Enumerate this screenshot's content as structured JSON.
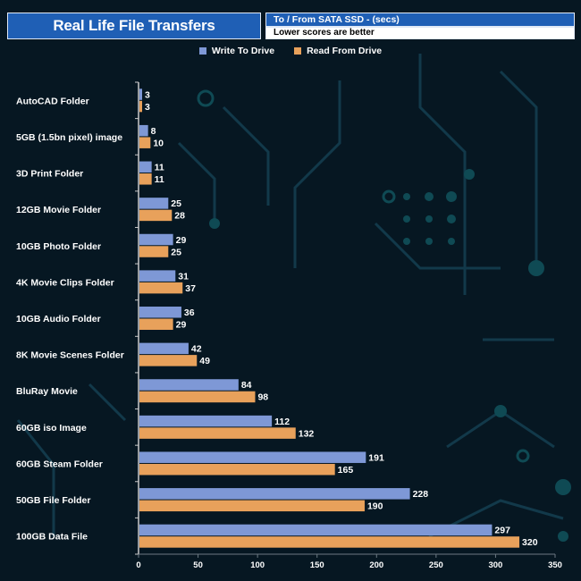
{
  "title": "Real Life File Transfers",
  "unit_note": "To / From SATA SSD - (secs)",
  "subnote": "Lower scores are better",
  "colors": {
    "write": "#7e98d6",
    "read": "#e8a15b",
    "title_bg": "#1f5fb5"
  },
  "chart_data": {
    "type": "bar",
    "orientation": "horizontal",
    "categories": [
      "AutoCAD Folder",
      "5GB (1.5bn pixel) image",
      "3D Print Folder",
      "12GB Movie Folder",
      "10GB Photo Folder",
      "4K Movie Clips Folder",
      "10GB Audio Folder",
      "8K Movie Scenes Folder",
      "BluRay Movie",
      "60GB iso Image",
      "60GB Steam Folder",
      "50GB File Folder",
      "100GB Data File"
    ],
    "series": [
      {
        "name": "Write To  Drive",
        "values": [
          3,
          8,
          11,
          25,
          29,
          31,
          36,
          42,
          84,
          112,
          191,
          228,
          297
        ]
      },
      {
        "name": "Read From  Drive",
        "values": [
          3,
          10,
          11,
          28,
          25,
          37,
          29,
          49,
          98,
          132,
          165,
          190,
          320
        ]
      }
    ],
    "xlim": [
      0,
      350
    ],
    "xticks": [
      "0",
      "50",
      "100",
      "150",
      "200",
      "250",
      "300",
      "350"
    ],
    "legend_position": "top-center",
    "grid": false
  }
}
